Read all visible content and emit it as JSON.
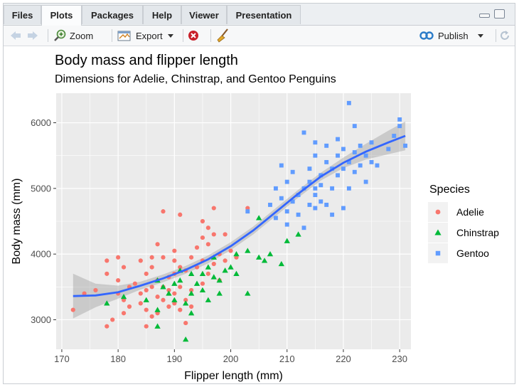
{
  "tabs": [
    {
      "label": "Files",
      "active": false
    },
    {
      "label": "Plots",
      "active": true
    },
    {
      "label": "Packages",
      "active": false
    },
    {
      "label": "Help",
      "active": false
    },
    {
      "label": "Viewer",
      "active": false
    },
    {
      "label": "Presentation",
      "active": false
    }
  ],
  "toolbar": {
    "zoom_label": "Zoom",
    "export_label": "Export",
    "publish_label": "Publish"
  },
  "colors": {
    "adelie": "#F8766D",
    "chinstrap": "#00BA38",
    "gentoo": "#619CFF",
    "smooth": "#3366FF",
    "panel": "#EBEBEB"
  },
  "chart_data": {
    "type": "scatter",
    "title": "Body mass and flipper length",
    "subtitle": "Dimensions for Adelie, Chinstrap, and Gentoo Penguins",
    "xlabel": "Flipper length (mm)",
    "ylabel": "Body mass (mm)",
    "xlim": [
      169,
      232
    ],
    "ylim": [
      2550,
      6450
    ],
    "x_ticks": [
      170,
      180,
      190,
      200,
      210,
      220,
      230
    ],
    "y_ticks": [
      3000,
      4000,
      5000,
      6000
    ],
    "grid": true,
    "legend": {
      "title": "Species",
      "position": "right",
      "entries": [
        "Adelie",
        "Chinstrap",
        "Gentoo"
      ]
    },
    "series": [
      {
        "name": "Adelie",
        "marker": "circle",
        "points": [
          [
            172,
            3150
          ],
          [
            174,
            3400
          ],
          [
            176,
            3450
          ],
          [
            178,
            3900
          ],
          [
            178,
            3700
          ],
          [
            178,
            2900
          ],
          [
            179,
            3000
          ],
          [
            180,
            3600
          ],
          [
            180,
            3400
          ],
          [
            180,
            3950
          ],
          [
            181,
            3800
          ],
          [
            181,
            3300
          ],
          [
            181,
            3100
          ],
          [
            182,
            3200
          ],
          [
            182,
            3500
          ],
          [
            183,
            3550
          ],
          [
            184,
            3250
          ],
          [
            184,
            3400
          ],
          [
            184,
            3900
          ],
          [
            185,
            3700
          ],
          [
            185,
            3450
          ],
          [
            185,
            3150
          ],
          [
            185,
            2900
          ],
          [
            186,
            3800
          ],
          [
            186,
            3500
          ],
          [
            186,
            3050
          ],
          [
            186,
            3950
          ],
          [
            187,
            4150
          ],
          [
            187,
            3600
          ],
          [
            187,
            3350
          ],
          [
            187,
            3100
          ],
          [
            188,
            3300
          ],
          [
            188,
            3500
          ],
          [
            188,
            3950
          ],
          [
            188,
            4650
          ],
          [
            189,
            3200
          ],
          [
            189,
            3450
          ],
          [
            189,
            3650
          ],
          [
            190,
            3700
          ],
          [
            190,
            3400
          ],
          [
            190,
            3900
          ],
          [
            190,
            4050
          ],
          [
            190,
            3250
          ],
          [
            191,
            3800
          ],
          [
            191,
            3500
          ],
          [
            191,
            3150
          ],
          [
            191,
            4600
          ],
          [
            192,
            3300
          ],
          [
            192,
            3750
          ],
          [
            192,
            2950
          ],
          [
            193,
            3950
          ],
          [
            193,
            3450
          ],
          [
            193,
            3200
          ],
          [
            194,
            3800
          ],
          [
            194,
            4100
          ],
          [
            195,
            3550
          ],
          [
            195,
            3900
          ],
          [
            195,
            4250
          ],
          [
            195,
            4500
          ],
          [
            196,
            3700
          ],
          [
            196,
            4150
          ],
          [
            196,
            4400
          ],
          [
            197,
            3850
          ],
          [
            197,
            4300
          ],
          [
            197,
            4700
          ],
          [
            198,
            4000
          ],
          [
            198,
            3600
          ],
          [
            199,
            3900
          ],
          [
            199,
            4300
          ],
          [
            200,
            4050
          ],
          [
            201,
            3950
          ],
          [
            203,
            4700
          ]
        ]
      },
      {
        "name": "Chinstrap",
        "marker": "triangle",
        "points": [
          [
            178,
            3250
          ],
          [
            181,
            3350
          ],
          [
            185,
            3300
          ],
          [
            187,
            3600
          ],
          [
            187,
            3150
          ],
          [
            187,
            2900
          ],
          [
            188,
            3500
          ],
          [
            189,
            3400
          ],
          [
            190,
            3550
          ],
          [
            190,
            3300
          ],
          [
            191,
            3600
          ],
          [
            191,
            3750
          ],
          [
            192,
            3250
          ],
          [
            192,
            2700
          ],
          [
            193,
            3700
          ],
          [
            193,
            3400
          ],
          [
            193,
            3100
          ],
          [
            194,
            3550
          ],
          [
            195,
            3700
          ],
          [
            195,
            3450
          ],
          [
            196,
            3800
          ],
          [
            196,
            3300
          ],
          [
            197,
            3650
          ],
          [
            197,
            3950
          ],
          [
            198,
            3600
          ],
          [
            198,
            3400
          ],
          [
            199,
            3750
          ],
          [
            200,
            3800
          ],
          [
            201,
            4000
          ],
          [
            201,
            3700
          ],
          [
            203,
            4050
          ],
          [
            203,
            3400
          ],
          [
            205,
            4550
          ],
          [
            205,
            3950
          ],
          [
            206,
            3900
          ],
          [
            207,
            4000
          ],
          [
            209,
            3850
          ],
          [
            210,
            4200
          ],
          [
            212,
            4300
          ]
        ]
      },
      {
        "name": "Gentoo",
        "marker": "square",
        "points": [
          [
            203,
            4650
          ],
          [
            207,
            4750
          ],
          [
            208,
            5000
          ],
          [
            208,
            4550
          ],
          [
            209,
            4850
          ],
          [
            209,
            5350
          ],
          [
            210,
            4650
          ],
          [
            210,
            5100
          ],
          [
            210,
            4450
          ],
          [
            211,
            4800
          ],
          [
            211,
            5250
          ],
          [
            212,
            4900
          ],
          [
            212,
            4600
          ],
          [
            213,
            5000
          ],
          [
            213,
            5850
          ],
          [
            213,
            4400
          ],
          [
            214,
            5300
          ],
          [
            214,
            4750
          ],
          [
            214,
            5100
          ],
          [
            215,
            5000
          ],
          [
            215,
            5500
          ],
          [
            215,
            4700
          ],
          [
            215,
            5700
          ],
          [
            215,
            4900
          ],
          [
            216,
            5200
          ],
          [
            216,
            4800
          ],
          [
            216,
            5050
          ],
          [
            217,
            5400
          ],
          [
            217,
            4750
          ],
          [
            217,
            5650
          ],
          [
            218,
            5000
          ],
          [
            218,
            5300
          ],
          [
            218,
            4600
          ],
          [
            219,
            5200
          ],
          [
            219,
            5500
          ],
          [
            219,
            5750
          ],
          [
            220,
            5300
          ],
          [
            220,
            4700
          ],
          [
            220,
            5600
          ],
          [
            221,
            5400
          ],
          [
            221,
            6300
          ],
          [
            221,
            5000
          ],
          [
            222,
            5550
          ],
          [
            222,
            5250
          ],
          [
            222,
            5950
          ],
          [
            223,
            5350
          ],
          [
            223,
            5650
          ],
          [
            224,
            5500
          ],
          [
            224,
            5100
          ],
          [
            225,
            5700
          ],
          [
            225,
            5400
          ],
          [
            226,
            5350
          ],
          [
            228,
            5600
          ],
          [
            229,
            5800
          ],
          [
            230,
            5950
          ],
          [
            230,
            6050
          ],
          [
            231,
            5650
          ]
        ]
      }
    ],
    "smooth_line": [
      [
        172,
        3360
      ],
      [
        176,
        3370
      ],
      [
        180,
        3420
      ],
      [
        184,
        3520
      ],
      [
        188,
        3630
      ],
      [
        192,
        3760
      ],
      [
        196,
        3920
      ],
      [
        200,
        4120
      ],
      [
        204,
        4360
      ],
      [
        208,
        4640
      ],
      [
        212,
        4920
      ],
      [
        216,
        5180
      ],
      [
        220,
        5390
      ],
      [
        224,
        5560
      ],
      [
        228,
        5700
      ],
      [
        231,
        5800
      ]
    ],
    "smooth_band": [
      [
        172,
        3700,
        3020
      ],
      [
        176,
        3550,
        3190
      ],
      [
        180,
        3520,
        3320
      ],
      [
        184,
        3580,
        3460
      ],
      [
        188,
        3690,
        3570
      ],
      [
        192,
        3820,
        3700
      ],
      [
        196,
        3980,
        3860
      ],
      [
        200,
        4180,
        4060
      ],
      [
        204,
        4420,
        4300
      ],
      [
        208,
        4700,
        4580
      ],
      [
        212,
        4980,
        4860
      ],
      [
        216,
        5240,
        5120
      ],
      [
        220,
        5470,
        5310
      ],
      [
        224,
        5680,
        5440
      ],
      [
        228,
        5880,
        5520
      ],
      [
        231,
        6020,
        5580
      ]
    ]
  }
}
